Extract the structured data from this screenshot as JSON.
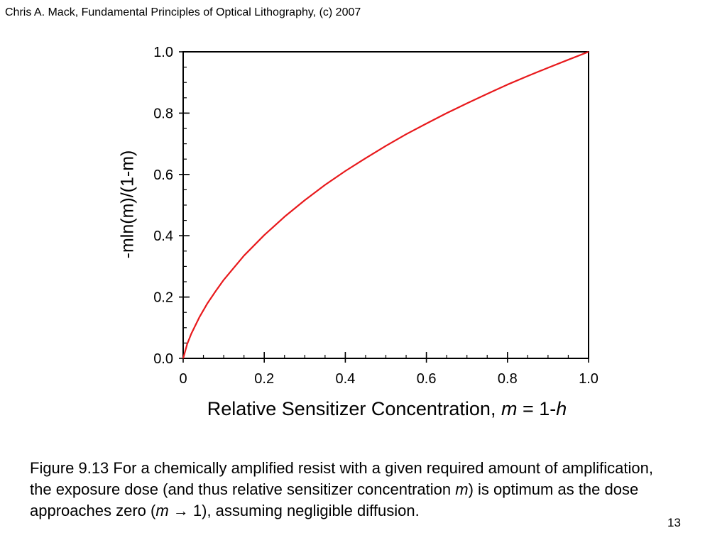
{
  "header": "Chris A. Mack, Fundamental Principles of Optical Lithography, (c) 2007",
  "slide_number": "13",
  "caption": {
    "prefix": "Figure 9.13  For a chemically amplified resist with a given required amount of amplification, the exposure dose (and thus relative sensitizer concentration ",
    "var1": "m",
    "middle": ") is optimum as the dose approaches zero (",
    "var2": "m",
    "arrow": " → 1",
    "suffix": "), assuming negligible diffusion."
  },
  "chart_data": {
    "type": "line",
    "title": "",
    "ylabel": "-mln(m)/(1-m)",
    "xlabel": {
      "text": "Relative Sensitizer Concentration, ",
      "var1": "m",
      "eq": " = 1-",
      "var2": "h"
    },
    "xlim": [
      0,
      1.0
    ],
    "ylim": [
      0,
      1.0
    ],
    "x_ticks": [
      "0",
      "0.2",
      "0.4",
      "0.6",
      "0.8",
      "1.0"
    ],
    "y_ticks": [
      "0.0",
      "0.2",
      "0.4",
      "0.6",
      "0.8",
      "1.0"
    ],
    "grid": false,
    "series": [
      {
        "color": "#e8191c",
        "x": [
          0.0,
          0.01,
          0.02,
          0.04,
          0.06,
          0.08,
          0.1,
          0.15,
          0.2,
          0.25,
          0.3,
          0.35,
          0.4,
          0.45,
          0.5,
          0.55,
          0.6,
          0.65,
          0.7,
          0.75,
          0.8,
          0.85,
          0.9,
          0.95,
          1.0
        ],
        "y": [
          0.0,
          0.047,
          0.08,
          0.134,
          0.18,
          0.219,
          0.256,
          0.335,
          0.402,
          0.462,
          0.516,
          0.566,
          0.611,
          0.653,
          0.693,
          0.731,
          0.766,
          0.8,
          0.832,
          0.863,
          0.893,
          0.921,
          0.948,
          0.974,
          1.0
        ]
      }
    ]
  }
}
